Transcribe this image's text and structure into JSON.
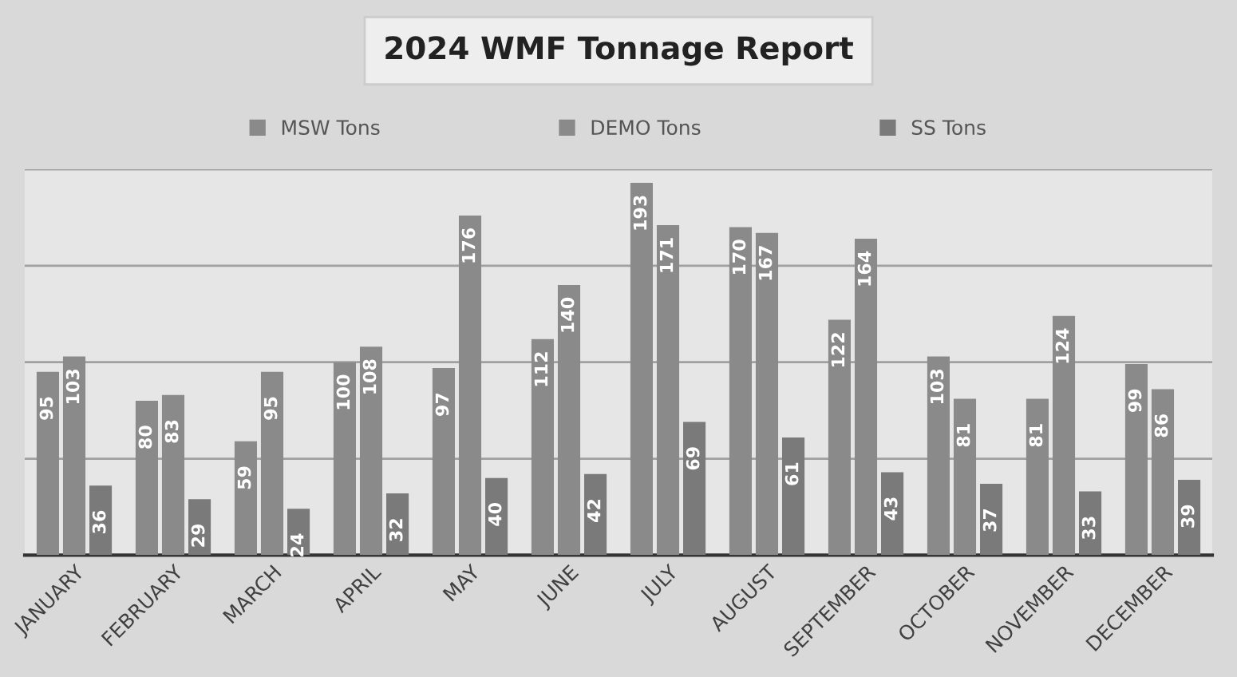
{
  "chart_data": {
    "type": "bar",
    "title": "2024 WMF Tonnage Report",
    "categories": [
      "JANUARY",
      "FEBRUARY",
      "MARCH",
      "APRIL",
      "MAY",
      "JUNE",
      "JULY",
      "AUGUST",
      "SEPTEMBER",
      "OCTOBER",
      "NOVEMBER",
      "DECEMBER"
    ],
    "series": [
      {
        "name": "MSW Tons",
        "color": "#8a8a8a",
        "values": [
          95,
          80,
          59,
          100,
          97,
          112,
          193,
          170,
          122,
          103,
          81,
          99
        ]
      },
      {
        "name": "DEMO Tons",
        "color": "#8a8a8a",
        "values": [
          103,
          83,
          95,
          108,
          176,
          140,
          171,
          167,
          164,
          81,
          124,
          86
        ]
      },
      {
        "name": "SS Tons",
        "color": "#7a7a7a",
        "values": [
          36,
          29,
          24,
          32,
          40,
          42,
          69,
          61,
          43,
          37,
          33,
          39
        ]
      }
    ],
    "ylim": [
      0,
      200
    ],
    "yticks": [
      {
        "value": 0,
        "label": null
      },
      {
        "value": 50,
        "label": null
      },
      {
        "value": 100,
        "label": null
      },
      {
        "value": 150,
        "label": null
      },
      {
        "value": 200,
        "label": null
      }
    ],
    "grid": "y",
    "legend": "top",
    "tick_labels": "x",
    "data_labels": true
  }
}
